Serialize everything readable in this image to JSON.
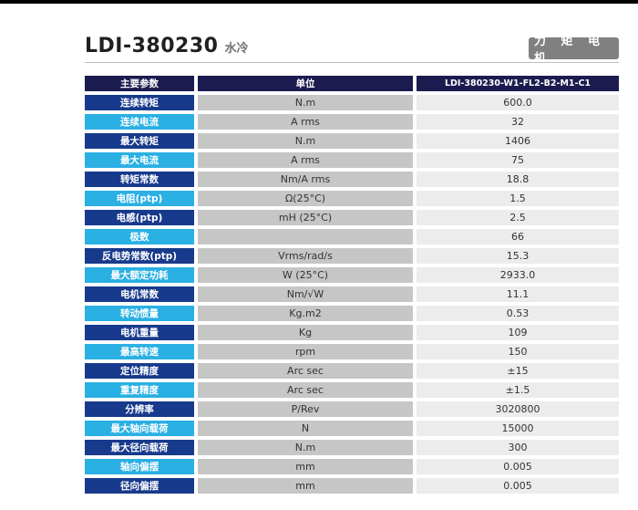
{
  "header": {
    "model": "LDI-380230",
    "cooling": "水冷",
    "badge": "力 矩 电 机"
  },
  "table": {
    "columns": [
      "主要参数",
      "单位",
      "LDI-380230-W1-FL2-B2-M1-C1"
    ],
    "rows": [
      {
        "param": "连续转矩",
        "unit": "N.m",
        "value": "600.0"
      },
      {
        "param": "连续电流",
        "unit": "A rms",
        "value": "32"
      },
      {
        "param": "最大转矩",
        "unit": "N.m",
        "value": "1406"
      },
      {
        "param": "最大电流",
        "unit": "A rms",
        "value": "75"
      },
      {
        "param": "转矩常数",
        "unit": "Nm/A rms",
        "value": "18.8"
      },
      {
        "param": "电阻(ptp)",
        "unit": "Ω(25°C)",
        "value": "1.5"
      },
      {
        "param": "电感(ptp)",
        "unit": "mH (25°C)",
        "value": "2.5"
      },
      {
        "param": "极数",
        "unit": "",
        "value": "66"
      },
      {
        "param": "反电势常数(ptp)",
        "unit": "Vrms/rad/s",
        "value": "15.3"
      },
      {
        "param": "最大额定功耗",
        "unit": "W (25°C)",
        "value": "2933.0"
      },
      {
        "param": "电机常数",
        "unit": "Nm/√W",
        "value": "11.1"
      },
      {
        "param": "转动惯量",
        "unit": "Kg.m2",
        "value": "0.53"
      },
      {
        "param": "电机重量",
        "unit": "Kg",
        "value": "109"
      },
      {
        "param": "最高转速",
        "unit": "rpm",
        "value": "150"
      },
      {
        "param": "定位精度",
        "unit": "Arc sec",
        "value": "±15"
      },
      {
        "param": "重复精度",
        "unit": "Arc sec",
        "value": "±1.5"
      },
      {
        "param": "分辨率",
        "unit": "P/Rev",
        "value": "3020800"
      },
      {
        "param": "最大轴向载荷",
        "unit": "N",
        "value": "15000"
      },
      {
        "param": "最大径向载荷",
        "unit": "N.m",
        "value": "300"
      },
      {
        "param": "轴向偏摆",
        "unit": "mm",
        "value": "0.005"
      },
      {
        "param": "径向偏摆",
        "unit": "mm",
        "value": "0.005"
      }
    ]
  },
  "colors": {
    "header_bg": "#1c1b4f",
    "label_dark": "#183a8c",
    "label_light": "#2ab0e3",
    "unit_bg": "#c6c6c6",
    "value_bg": "#ececec",
    "badge_bg": "#808080"
  }
}
